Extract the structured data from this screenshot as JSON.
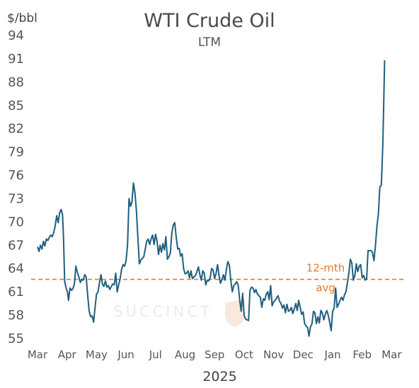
{
  "chart_data": {
    "type": "line",
    "title": "WTI Crude Oil",
    "subtitle": "LTM",
    "ylabel": "$/bbl",
    "xlabel": "2025",
    "ylim": [
      55,
      94
    ],
    "yticks": [
      55,
      58,
      61,
      64,
      67,
      70,
      73,
      76,
      79,
      82,
      85,
      88,
      91,
      94
    ],
    "yticklabels": [
      "55",
      "58",
      "61",
      "64",
      "67",
      "70",
      "73",
      "76",
      "79",
      "82",
      "85",
      "88",
      "91",
      "94"
    ],
    "xtick_labels": [
      "Mar",
      "Apr",
      "May",
      "Jun",
      "Jul",
      "Aug",
      "Sep",
      "Oct",
      "Nov",
      "Dec",
      "Jan",
      "Feb",
      "Mar"
    ],
    "x_range": [
      0,
      12.35
    ],
    "grid": false,
    "watermark": "SUCCINCT",
    "colors": {
      "line": "#1f5f7f",
      "average": "#e07b2e",
      "text": "#555555"
    },
    "series": [
      {
        "values": [
          [
            0,
            66.8
          ],
          [
            0.05,
            66.2
          ],
          [
            0.1,
            67.0
          ],
          [
            0.15,
            66.5
          ],
          [
            0.2,
            67.5
          ],
          [
            0.25,
            66.9
          ],
          [
            0.3,
            67.8
          ],
          [
            0.35,
            67.6
          ],
          [
            0.4,
            68.0
          ],
          [
            0.45,
            68.3
          ],
          [
            0.5,
            68.1
          ],
          [
            0.55,
            68.6
          ],
          [
            0.6,
            69.5
          ],
          [
            0.65,
            70.8
          ],
          [
            0.7,
            69.9
          ],
          [
            0.75,
            71.2
          ],
          [
            0.8,
            71.6
          ],
          [
            0.85,
            70.9
          ],
          [
            0.88,
            68.0
          ],
          [
            0.92,
            62.3
          ],
          [
            0.97,
            61.5
          ],
          [
            1.02,
            60.9
          ],
          [
            1.05,
            59.9
          ],
          [
            1.1,
            61.5
          ],
          [
            1.15,
            61.2
          ],
          [
            1.2,
            61.4
          ],
          [
            1.25,
            62.0
          ],
          [
            1.3,
            64.3
          ],
          [
            1.35,
            63.5
          ],
          [
            1.4,
            62.9
          ],
          [
            1.45,
            62.2
          ],
          [
            1.5,
            62.6
          ],
          [
            1.55,
            62.5
          ],
          [
            1.6,
            63.2
          ],
          [
            1.65,
            62.9
          ],
          [
            1.7,
            60.5
          ],
          [
            1.75,
            58.5
          ],
          [
            1.8,
            57.8
          ],
          [
            1.85,
            57.9
          ],
          [
            1.9,
            57.1
          ],
          [
            1.95,
            59.0
          ],
          [
            2.0,
            60.7
          ],
          [
            2.05,
            61.0
          ],
          [
            2.1,
            62.2
          ],
          [
            2.15,
            63.2
          ],
          [
            2.2,
            62.0
          ],
          [
            2.25,
            61.7
          ],
          [
            2.3,
            62.4
          ],
          [
            2.35,
            61.6
          ],
          [
            2.4,
            61.8
          ],
          [
            2.45,
            61.3
          ],
          [
            2.5,
            61.7
          ],
          [
            2.55,
            62.0
          ],
          [
            2.6,
            61.9
          ],
          [
            2.65,
            63.4
          ],
          [
            2.7,
            61.0
          ],
          [
            2.75,
            61.9
          ],
          [
            2.8,
            62.7
          ],
          [
            2.85,
            63.9
          ],
          [
            2.9,
            64.5
          ],
          [
            2.95,
            64.3
          ],
          [
            3.0,
            65.0
          ],
          [
            3.05,
            67.0
          ],
          [
            3.1,
            73.0
          ],
          [
            3.15,
            72.0
          ],
          [
            3.2,
            72.5
          ],
          [
            3.25,
            75.0
          ],
          [
            3.3,
            73.8
          ],
          [
            3.35,
            71.5
          ],
          [
            3.4,
            68.0
          ],
          [
            3.45,
            64.6
          ],
          [
            3.5,
            65.1
          ],
          [
            3.55,
            65.3
          ],
          [
            3.6,
            65.5
          ],
          [
            3.65,
            66.5
          ],
          [
            3.7,
            67.5
          ],
          [
            3.75,
            67.8
          ],
          [
            3.8,
            67.1
          ],
          [
            3.85,
            67.8
          ],
          [
            3.9,
            68.3
          ],
          [
            3.95,
            67.1
          ],
          [
            4.0,
            68.4
          ],
          [
            4.05,
            67.5
          ],
          [
            4.1,
            65.8
          ],
          [
            4.15,
            67.0
          ],
          [
            4.2,
            66.1
          ],
          [
            4.25,
            67.2
          ],
          [
            4.3,
            66.4
          ],
          [
            4.35,
            68.1
          ],
          [
            4.4,
            65.2
          ],
          [
            4.45,
            65.5
          ],
          [
            4.5,
            66.0
          ],
          [
            4.55,
            68.5
          ],
          [
            4.6,
            69.6
          ],
          [
            4.65,
            69.9
          ],
          [
            4.7,
            68.0
          ],
          [
            4.75,
            66.5
          ],
          [
            4.8,
            66.6
          ],
          [
            4.85,
            65.6
          ],
          [
            4.9,
            65.9
          ],
          [
            4.95,
            64.0
          ],
          [
            5.0,
            63.3
          ],
          [
            5.05,
            63.4
          ],
          [
            5.1,
            63.7
          ],
          [
            5.15,
            62.8
          ],
          [
            5.2,
            63.7
          ],
          [
            5.25,
            62.7
          ],
          [
            5.3,
            62.9
          ],
          [
            5.35,
            63.1
          ],
          [
            5.4,
            63.6
          ],
          [
            5.45,
            64.2
          ],
          [
            5.5,
            63.2
          ],
          [
            5.55,
            62.5
          ],
          [
            5.6,
            63.7
          ],
          [
            5.65,
            63.4
          ],
          [
            5.7,
            61.9
          ],
          [
            5.75,
            62.5
          ],
          [
            5.8,
            62.4
          ],
          [
            5.85,
            62.8
          ],
          [
            5.9,
            64.0
          ],
          [
            5.95,
            63.8
          ],
          [
            6.0,
            62.7
          ],
          [
            6.05,
            63.4
          ],
          [
            6.1,
            64.5
          ],
          [
            6.15,
            63.1
          ],
          [
            6.2,
            62.1
          ],
          [
            6.25,
            62.6
          ],
          [
            6.3,
            63.2
          ],
          [
            6.35,
            62.5
          ],
          [
            6.4,
            63.9
          ],
          [
            6.45,
            64.9
          ],
          [
            6.5,
            64.4
          ],
          [
            6.55,
            62.5
          ],
          [
            6.6,
            61.0
          ],
          [
            6.65,
            61.8
          ],
          [
            6.7,
            62.0
          ],
          [
            6.75,
            62.3
          ],
          [
            6.8,
            61.8
          ],
          [
            6.85,
            60.0
          ],
          [
            6.9,
            58.5
          ],
          [
            6.95,
            60.8
          ],
          [
            7.0,
            58.0
          ],
          [
            7.05,
            57.5
          ],
          [
            7.1,
            57.4
          ],
          [
            7.15,
            57.3
          ],
          [
            7.2,
            61.2
          ],
          [
            7.25,
            61.6
          ],
          [
            7.3,
            61.5
          ],
          [
            7.35,
            60.9
          ],
          [
            7.4,
            61.3
          ],
          [
            7.45,
            60.7
          ],
          [
            7.5,
            60.5
          ],
          [
            7.55,
            60.3
          ],
          [
            7.6,
            59.0
          ],
          [
            7.65,
            60.1
          ],
          [
            7.7,
            59.9
          ],
          [
            7.75,
            60.7
          ],
          [
            7.8,
            61.0
          ],
          [
            7.85,
            60.0
          ],
          [
            7.9,
            61.8
          ],
          [
            7.95,
            59.2
          ],
          [
            8.0,
            59.7
          ],
          [
            8.05,
            59.9
          ],
          [
            8.1,
            60.2
          ],
          [
            8.15,
            60.5
          ],
          [
            8.2,
            59.8
          ],
          [
            8.25,
            59.5
          ],
          [
            8.3,
            58.9
          ],
          [
            8.35,
            59.3
          ],
          [
            8.4,
            58.3
          ],
          [
            8.45,
            59.4
          ],
          [
            8.5,
            58.5
          ],
          [
            8.55,
            58.6
          ],
          [
            8.6,
            59.0
          ],
          [
            8.65,
            58.2
          ],
          [
            8.7,
            58.8
          ],
          [
            8.75,
            59.5
          ],
          [
            8.8,
            58.6
          ],
          [
            8.85,
            59.9
          ],
          [
            8.9,
            59.0
          ],
          [
            8.95,
            58.1
          ],
          [
            9.0,
            58.4
          ],
          [
            9.05,
            56.9
          ],
          [
            9.1,
            56.6
          ],
          [
            9.15,
            56.4
          ],
          [
            9.2,
            55.3
          ],
          [
            9.25,
            56.5
          ],
          [
            9.3,
            56.9
          ],
          [
            9.35,
            58.5
          ],
          [
            9.4,
            58.3
          ],
          [
            9.45,
            56.9
          ],
          [
            9.5,
            57.8
          ],
          [
            9.55,
            57.0
          ],
          [
            9.6,
            58.6
          ],
          [
            9.65,
            58.3
          ],
          [
            9.7,
            57.4
          ],
          [
            9.75,
            58.1
          ],
          [
            9.8,
            58.6
          ],
          [
            9.85,
            58.0
          ],
          [
            9.9,
            57.1
          ],
          [
            9.95,
            56.0
          ],
          [
            10.0,
            58.5
          ],
          [
            10.05,
            58.9
          ],
          [
            10.1,
            61.5
          ],
          [
            10.15,
            59.0
          ],
          [
            10.2,
            59.4
          ],
          [
            10.25,
            59.9
          ],
          [
            10.3,
            60.3
          ],
          [
            10.35,
            59.9
          ],
          [
            10.4,
            60.6
          ],
          [
            10.45,
            61.0
          ],
          [
            10.5,
            62.2
          ],
          [
            10.55,
            63.4
          ],
          [
            10.6,
            65.2
          ],
          [
            10.65,
            64.7
          ],
          [
            10.7,
            62.5
          ],
          [
            10.75,
            63.1
          ],
          [
            10.8,
            64.6
          ],
          [
            10.85,
            63.6
          ],
          [
            10.9,
            64.3
          ],
          [
            10.95,
            64.5
          ],
          [
            11.0,
            62.8
          ],
          [
            11.05,
            63.1
          ],
          [
            11.1,
            62.5
          ],
          [
            11.15,
            62.7
          ],
          [
            11.2,
            66.3
          ],
          [
            11.25,
            66.3
          ],
          [
            11.3,
            66.3
          ],
          [
            11.35,
            66.1
          ],
          [
            11.4,
            65.0
          ],
          [
            11.45,
            67.0
          ],
          [
            11.5,
            69.5
          ],
          [
            11.55,
            71.0
          ],
          [
            11.6,
            74.5
          ],
          [
            11.65,
            74.7
          ],
          [
            11.7,
            80.0
          ],
          [
            11.73,
            85.0
          ],
          [
            11.76,
            90.8
          ]
        ]
      }
    ],
    "average": {
      "value": 62.6,
      "label_line1": "12-mth",
      "label_line2": "avg"
    }
  }
}
